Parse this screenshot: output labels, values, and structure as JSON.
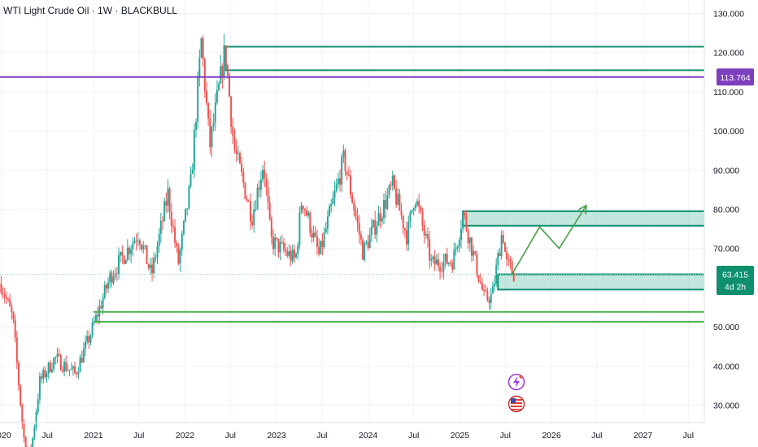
{
  "header": {
    "title": "WTI Light Crude Oil · 1W · BLACKBULL"
  },
  "colors": {
    "up": "#26a69a",
    "down": "#ef5350",
    "zone_fill": "#8fd3c4",
    "zone_stroke": "#0f8f6e",
    "support_line": "#4caf50",
    "resistance_line": "#7e3fbf",
    "arrow": "#43a047",
    "current_price_line": "#9ad6c8"
  },
  "icons": [
    "lightning-icon",
    "us-flag-icon"
  ],
  "chart_data": {
    "type": "candlestick",
    "instrument": "WTI Light Crude Oil",
    "timeframe": "1W",
    "broker": "BLACKBULL",
    "y_ticks": [
      "130.000",
      "120.000",
      "110.000",
      "100.000",
      "90.000",
      "80.000",
      "70.000",
      "50.000",
      "40.000",
      "30.000"
    ],
    "x_ticks": [
      "2020",
      "Jul",
      "2021",
      "Jul",
      "2022",
      "Jul",
      "2023",
      "Jul",
      "2024",
      "Jul",
      "2025",
      "Jul",
      "2026",
      "Jul",
      "2027",
      "Jul"
    ],
    "ylim": [
      27,
      131
    ],
    "price_path": [
      [
        "2019-12-30",
        61
      ],
      [
        "2020-02-15",
        52
      ],
      [
        "2020-03-28",
        22
      ],
      [
        "2020-04-25",
        17
      ],
      [
        "2020-06-01",
        36
      ],
      [
        "2020-08-01",
        42
      ],
      [
        "2020-10-20",
        38
      ],
      [
        "2020-12-20",
        48
      ],
      [
        "2021-03-10",
        63
      ],
      [
        "2021-06-30",
        74
      ],
      [
        "2021-08-20",
        63
      ],
      [
        "2021-10-25",
        84
      ],
      [
        "2021-12-05",
        66
      ],
      [
        "2022-01-25",
        87
      ],
      [
        "2022-03-07",
        123
      ],
      [
        "2022-04-10",
        96
      ],
      [
        "2022-06-10",
        121
      ],
      [
        "2022-07-15",
        96
      ],
      [
        "2022-09-25",
        78
      ],
      [
        "2022-11-10",
        92
      ],
      [
        "2022-12-10",
        72
      ],
      [
        "2023-03-18",
        67
      ],
      [
        "2023-04-12",
        83
      ],
      [
        "2023-06-20",
        68
      ],
      [
        "2023-09-27",
        93
      ],
      [
        "2023-12-12",
        69
      ],
      [
        "2024-04-08",
        86
      ],
      [
        "2024-06-05",
        73
      ],
      [
        "2024-07-05",
        84
      ],
      [
        "2024-09-10",
        66
      ],
      [
        "2024-12-05",
        67
      ],
      [
        "2025-01-14",
        79
      ],
      [
        "2025-04-09",
        57
      ],
      [
        "2025-05-10",
        58
      ],
      [
        "2025-06-20",
        75
      ],
      [
        "2025-07-05",
        66
      ],
      [
        "2025-07-22",
        65
      ],
      [
        "2025-08-05",
        63.4
      ]
    ],
    "current_price": "63.415",
    "countdown": "4d 2h",
    "resistance_line": "113.764",
    "zones": [
      {
        "from": "2022-06-13",
        "to": "2027-12-31",
        "low": 115.5,
        "high": 121.5
      },
      {
        "from": "2025-01-13",
        "to": "2027-12-31",
        "low": 75.8,
        "high": 79.5
      },
      {
        "from": "2025-06-02",
        "to": "2027-12-31",
        "low": 59.5,
        "high": 63.4
      }
    ],
    "support_lines": [
      {
        "from": "2021-01-01",
        "value": 53.8
      },
      {
        "from": "2021-01-01",
        "value": 51.3
      }
    ],
    "projection": [
      [
        "2025-07-28",
        63.4
      ],
      [
        "2025-11-15",
        75.5
      ],
      [
        "2026-02-01",
        70
      ],
      [
        "2026-05-20",
        81
      ]
    ]
  }
}
